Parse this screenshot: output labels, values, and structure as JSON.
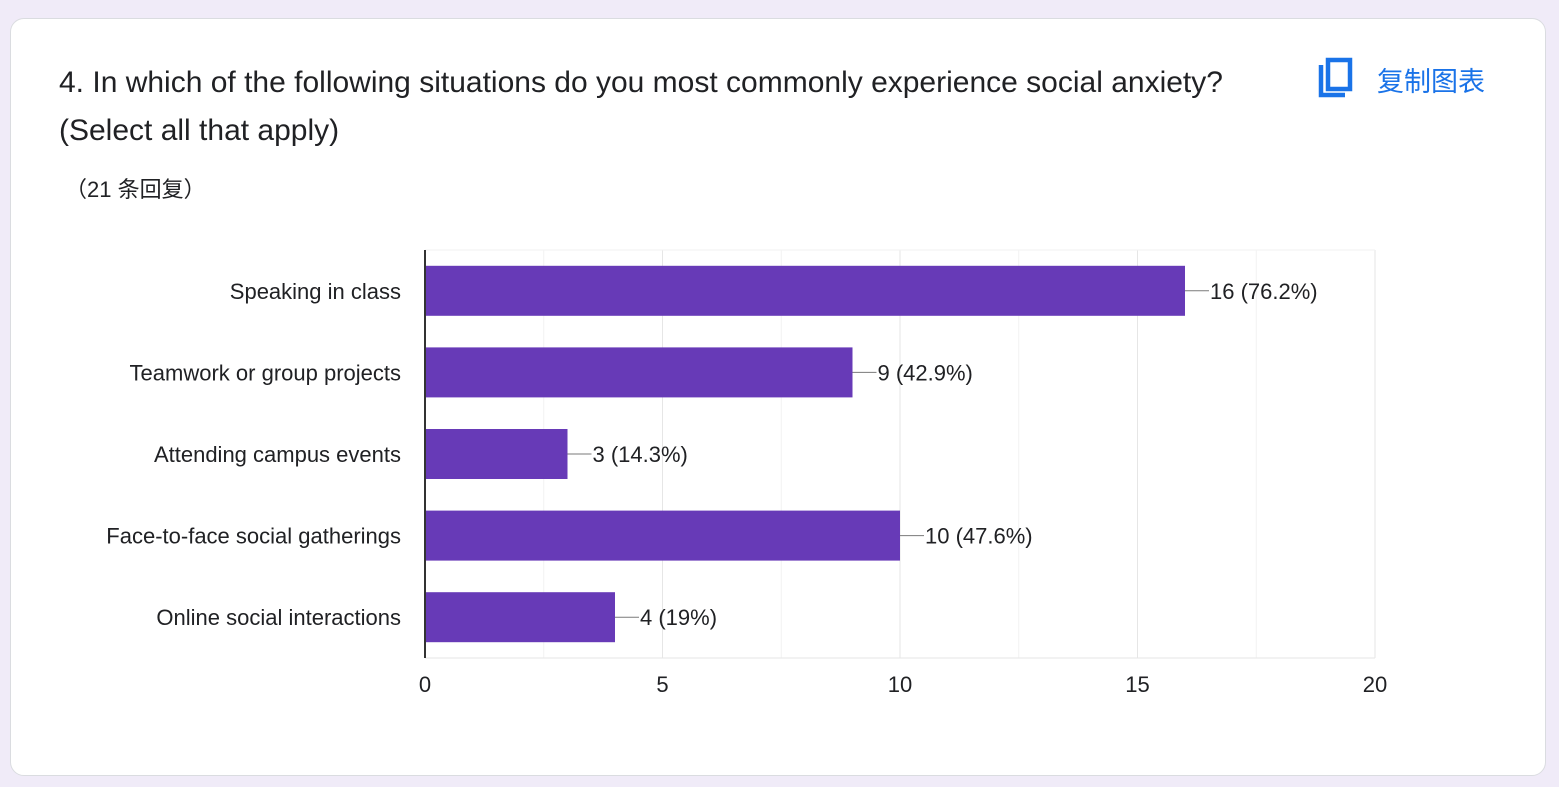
{
  "question": {
    "title": "4.  In which of the following situations do you most commonly experience social anxiety? (Select all that apply)",
    "response_count": "（21 条回复）"
  },
  "toolbar": {
    "copy_chart_label": "复制图表",
    "copy_icon": "copy-icon"
  },
  "colors": {
    "bar": "#673ab7",
    "accent": "#1a73e8",
    "background": "#f0ebf8"
  },
  "chart_data": {
    "type": "bar",
    "orientation": "horizontal",
    "categories": [
      "Speaking in class",
      "Teamwork or group projects",
      "Attending campus events",
      "Face-to-face social gatherings",
      "Online social interactions"
    ],
    "values": [
      16,
      9,
      3,
      10,
      4
    ],
    "data_labels": [
      "16 (76.2%)",
      "9 (42.9%)",
      "3 (14.3%)",
      "10 (47.6%)",
      "4 (19%)"
    ],
    "xticks": [
      "0",
      "5",
      "10",
      "15",
      "20"
    ],
    "xlim": [
      0,
      20
    ],
    "grid": true,
    "title": "",
    "xlabel": "",
    "ylabel": ""
  }
}
